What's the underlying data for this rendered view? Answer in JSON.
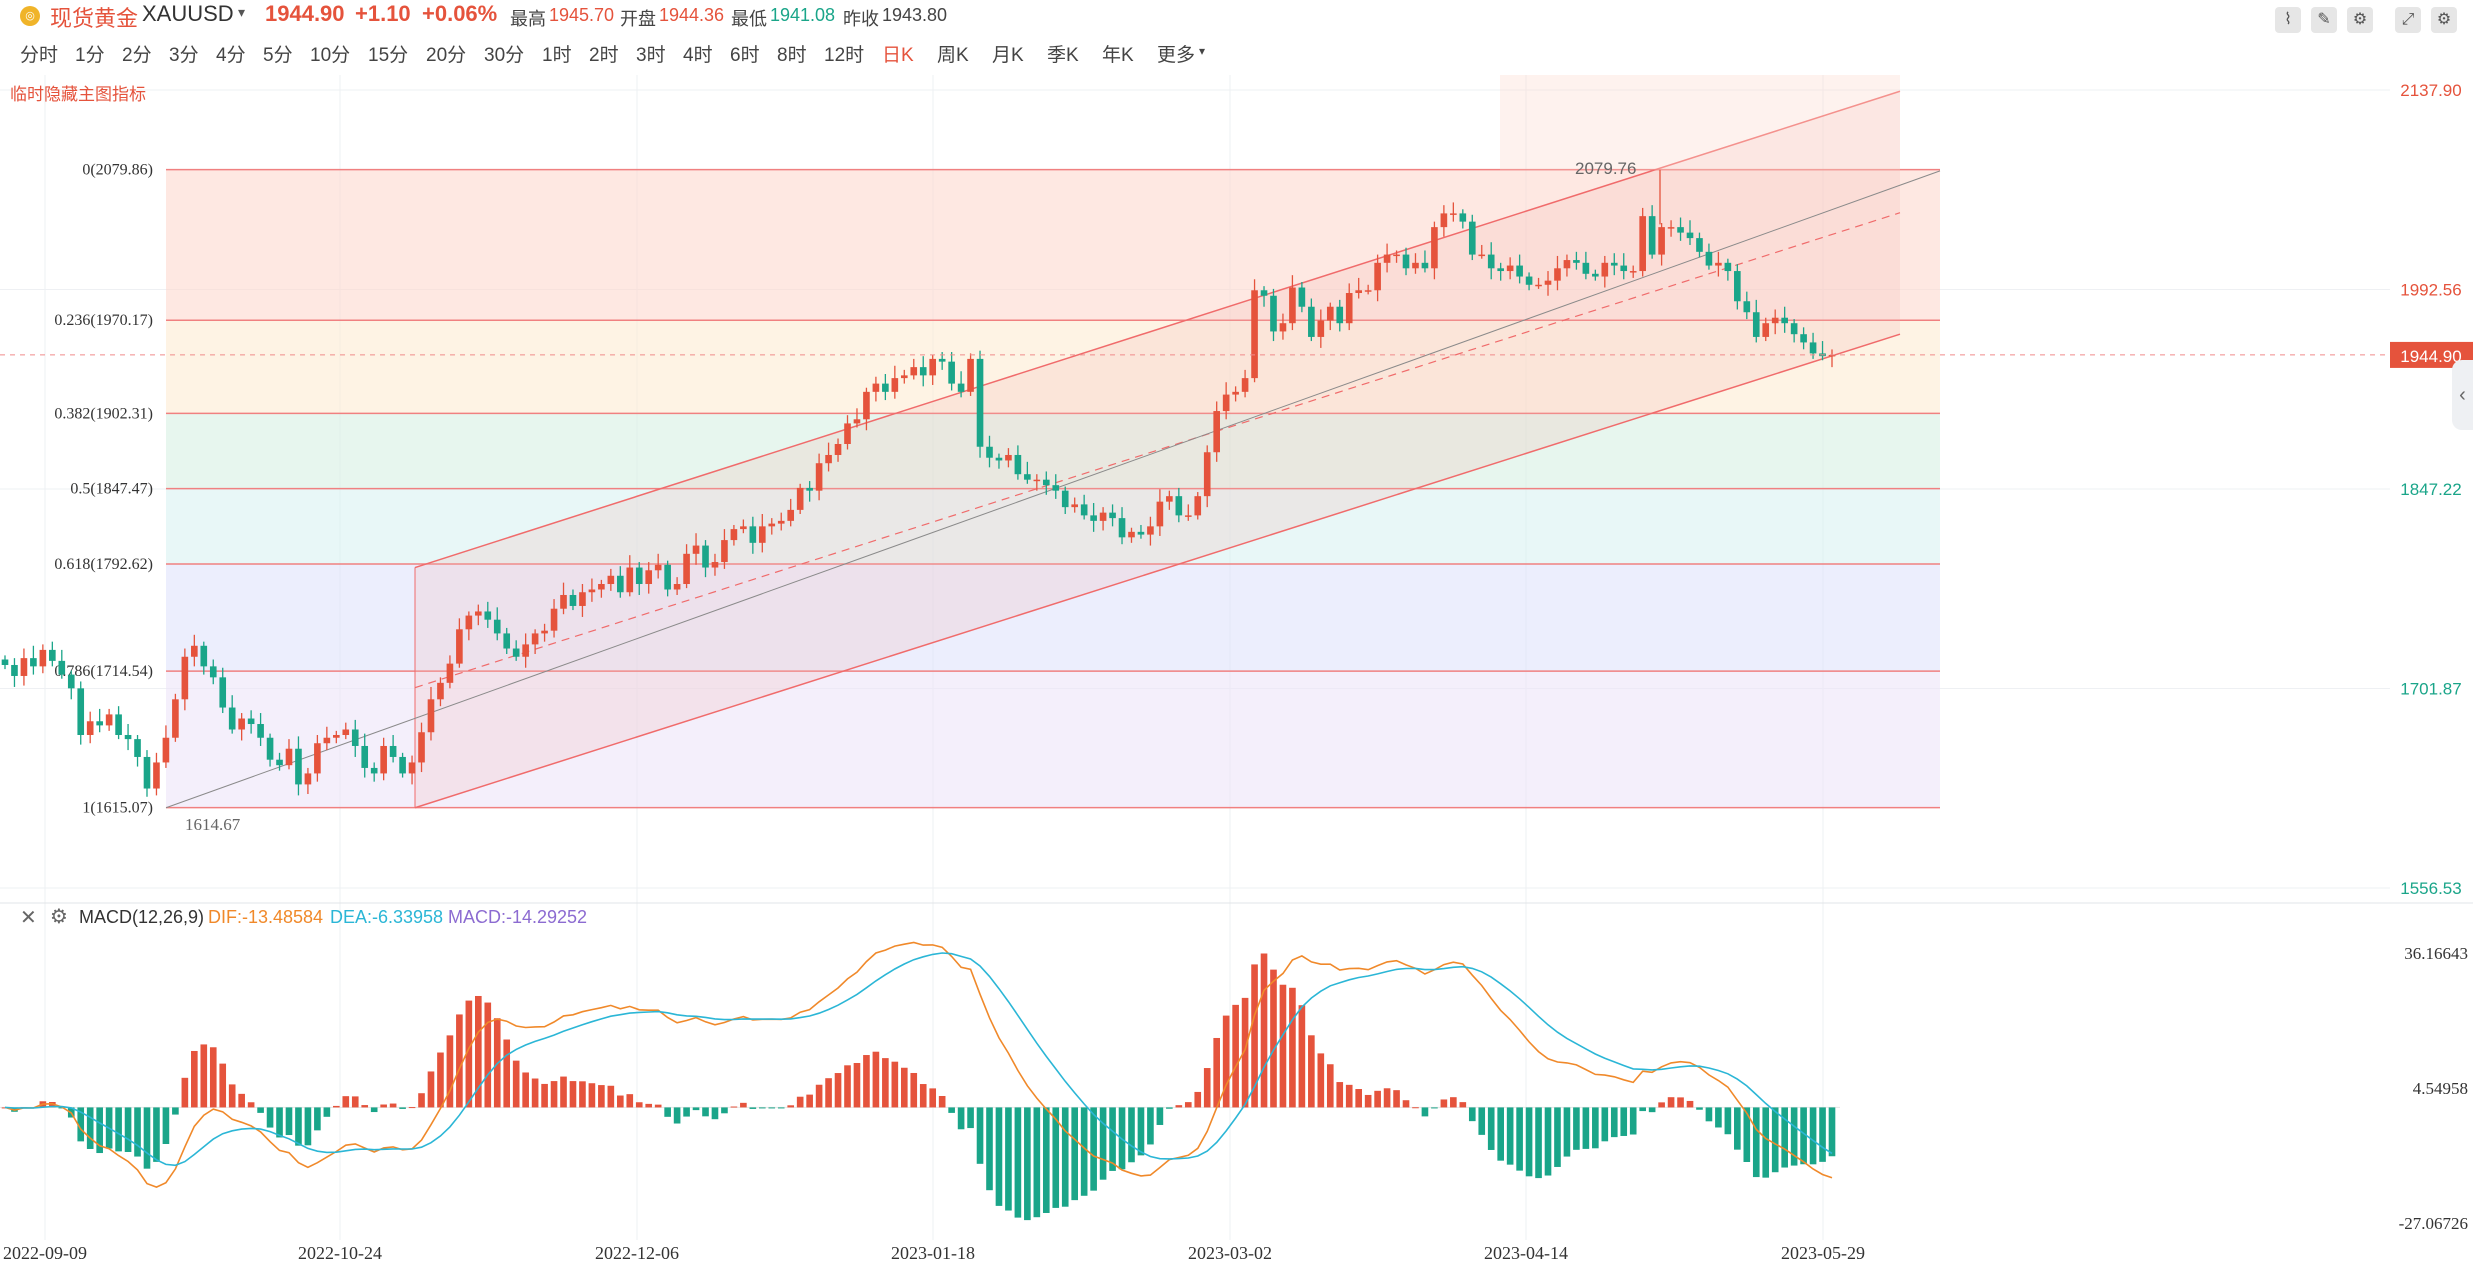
{
  "header": {
    "icon": "gold-coin-icon",
    "name": "现货黄金",
    "symbol": "XAUUSD",
    "price": "1944.90",
    "change": "+1.10",
    "change_pct": "+0.06%",
    "high_label": "最高",
    "high_value": "1945.70",
    "open_label": "开盘",
    "open_value": "1944.36",
    "low_label": "最低",
    "low_value": "1941.08",
    "prev_close_label": "昨收",
    "prev_close_value": "1943.80",
    "up_color": "#e5533c",
    "down_color": "#1aa589"
  },
  "toolbar": {
    "timeframes": [
      "分时",
      "1分",
      "2分",
      "3分",
      "4分",
      "5分",
      "10分",
      "15分",
      "20分",
      "30分",
      "1时",
      "2时",
      "3时",
      "4时",
      "6时",
      "8时",
      "12时",
      "日K",
      "周K",
      "月K",
      "季K",
      "年K",
      "更多"
    ],
    "active_timeframe": "日K",
    "tool_icons": [
      "line-tool-icon",
      "pen-tool-icon",
      "indicator-tool-icon",
      "fullscreen-icon",
      "settings-icon"
    ]
  },
  "hide_indicator_label": "临时隐藏主图指标",
  "chart_data": [
    {
      "type": "candlestick",
      "x_labels": [
        "2022-09-09",
        "2022-10-24",
        "2022-12-06",
        "2023-01-18",
        "2023-03-02",
        "2023-04-14",
        "2023-05-29"
      ],
      "y_ticks": [
        "2137.90",
        "1992.56",
        "1847.22",
        "1701.87",
        "1556.53"
      ],
      "ylim": [
        1556.53,
        2137.9
      ],
      "last_price": "1944.90",
      "high_marker": "2079.76",
      "low_marker": "1614.67",
      "fibonacci": [
        {
          "label": "0(2079.86)",
          "value": 2079.86
        },
        {
          "label": "0.236(1970.17)",
          "value": 1970.17
        },
        {
          "label": "0.382(1902.31)",
          "value": 1902.31
        },
        {
          "label": "0.5(1847.47)",
          "value": 1847.47
        },
        {
          "label": "0.618(1792.62)",
          "value": 1792.62
        },
        {
          "label": "0.786(1714.54)",
          "value": 1714.54
        },
        {
          "label": "1(1615.07)",
          "value": 1615.07
        }
      ],
      "close_path": [
        1719,
        1711,
        1724,
        1718,
        1730,
        1722,
        1712,
        1702,
        1668,
        1678,
        1675,
        1683,
        1668,
        1665,
        1652,
        1629,
        1648,
        1666,
        1694,
        1725,
        1733,
        1718,
        1710,
        1688,
        1672,
        1680,
        1676,
        1666,
        1650,
        1646,
        1658,
        1632,
        1640,
        1662,
        1666,
        1668,
        1672,
        1660,
        1644,
        1640,
        1660,
        1652,
        1640,
        1648,
        1670,
        1694,
        1706,
        1720,
        1745,
        1755,
        1758,
        1752,
        1742,
        1731,
        1725,
        1734,
        1742,
        1744,
        1760,
        1770,
        1762,
        1772,
        1774,
        1778,
        1784,
        1772,
        1790,
        1778,
        1788,
        1792,
        1774,
        1778,
        1800,
        1806,
        1790,
        1794,
        1810,
        1818,
        1820,
        1808,
        1820,
        1822,
        1824,
        1832,
        1848,
        1846,
        1866,
        1872,
        1880,
        1895,
        1898,
        1918,
        1924,
        1918,
        1928,
        1930,
        1936,
        1930,
        1942,
        1940,
        1924,
        1918,
        1942,
        1878,
        1870,
        1868,
        1872,
        1858,
        1854,
        1854,
        1850,
        1846,
        1834,
        1836,
        1828,
        1824,
        1830,
        1826,
        1812,
        1816,
        1814,
        1820,
        1838,
        1842,
        1828,
        1828,
        1842,
        1874,
        1904,
        1916,
        1918,
        1928,
        1992,
        1988,
        1962,
        1968,
        1994,
        1980,
        1958,
        1970,
        1980,
        1968,
        1990,
        1992,
        1992,
        2012,
        2018,
        2018,
        2008,
        2012,
        2008,
        2038,
        2048,
        2048,
        2042,
        2018,
        2018,
        2008,
        2006,
        2010,
        2002,
        1996,
        1996,
        1999,
        2008,
        2014,
        2012,
        2004,
        2002,
        2012,
        2010,
        2006,
        2006,
        2046,
        2018,
        2038,
        2038,
        2034,
        2030,
        2020,
        2010,
        2012,
        2006,
        1984,
        1976,
        1958,
        1968,
        1972,
        1968,
        1960,
        1954,
        1946,
        1944,
        1944.9
      ]
    },
    {
      "type": "macd",
      "title": "MACD(12,26,9)",
      "dif_label": "DIF:-13.48584",
      "dea_label": "DEA:-6.33958",
      "macd_label": "MACD:-14.29252",
      "y_ticks": [
        "36.16643",
        "4.54958",
        "-27.06726"
      ],
      "ylim": [
        -27.06726,
        36.16643
      ],
      "dif_color": "#f0892a",
      "dea_color": "#2bb6d6",
      "macd_label_color": "#8c6bd1"
    }
  ]
}
